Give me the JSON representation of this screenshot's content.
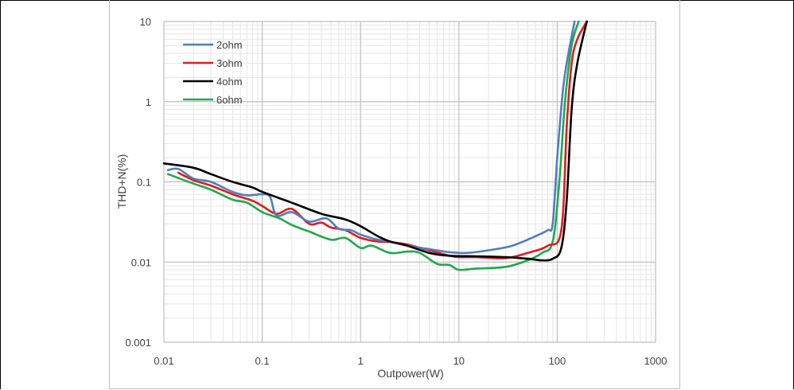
{
  "chart_data": {
    "type": "line",
    "title": "",
    "xlabel": "Outpower(W)",
    "ylabel": "THD+N(%)",
    "xscale": "log",
    "yscale": "log",
    "xlim": [
      0.01,
      1000
    ],
    "ylim": [
      0.001,
      10
    ],
    "x_ticks": [
      "0.01",
      "0.1",
      "1",
      "10",
      "100",
      "1000"
    ],
    "y_ticks": [
      "0.001",
      "0.01",
      "0.1",
      "1",
      "10"
    ],
    "grid": true,
    "legend_position": "top-left",
    "series": [
      {
        "name": "2ohm",
        "color": "#4e7fc0",
        "points": [
          [
            0.011,
            0.14
          ],
          [
            0.014,
            0.145
          ],
          [
            0.02,
            0.11
          ],
          [
            0.03,
            0.1
          ],
          [
            0.05,
            0.075
          ],
          [
            0.07,
            0.068
          ],
          [
            0.1,
            0.07
          ],
          [
            0.12,
            0.065
          ],
          [
            0.14,
            0.038
          ],
          [
            0.2,
            0.042
          ],
          [
            0.3,
            0.032
          ],
          [
            0.45,
            0.035
          ],
          [
            0.6,
            0.026
          ],
          [
            0.8,
            0.025
          ],
          [
            1,
            0.022
          ],
          [
            1.5,
            0.019
          ],
          [
            2,
            0.018
          ],
          [
            3,
            0.016
          ],
          [
            5,
            0.0145
          ],
          [
            8,
            0.0133
          ],
          [
            12,
            0.013
          ],
          [
            20,
            0.014
          ],
          [
            35,
            0.016
          ],
          [
            60,
            0.021
          ],
          [
            80,
            0.025
          ],
          [
            90,
            0.03
          ],
          [
            100,
            0.2
          ],
          [
            115,
            1.5
          ],
          [
            130,
            4
          ],
          [
            150,
            10
          ]
        ]
      },
      {
        "name": "3ohm",
        "color": "#e31a1c",
        "points": [
          [
            0.014,
            0.13
          ],
          [
            0.02,
            0.105
          ],
          [
            0.03,
            0.09
          ],
          [
            0.05,
            0.07
          ],
          [
            0.08,
            0.058
          ],
          [
            0.1,
            0.05
          ],
          [
            0.14,
            0.04
          ],
          [
            0.2,
            0.046
          ],
          [
            0.3,
            0.03
          ],
          [
            0.4,
            0.031
          ],
          [
            0.5,
            0.027
          ],
          [
            0.7,
            0.025
          ],
          [
            1,
            0.02
          ],
          [
            1.5,
            0.018
          ],
          [
            2,
            0.0178
          ],
          [
            3,
            0.0165
          ],
          [
            5,
            0.014
          ],
          [
            8,
            0.012
          ],
          [
            10,
            0.0115
          ],
          [
            15,
            0.0115
          ],
          [
            30,
            0.0112
          ],
          [
            50,
            0.013
          ],
          [
            80,
            0.016
          ],
          [
            110,
            0.025
          ],
          [
            125,
            0.5
          ],
          [
            140,
            3
          ],
          [
            160,
            6
          ],
          [
            200,
            10
          ]
        ]
      },
      {
        "name": "4ohm",
        "color": "#000000",
        "points": [
          [
            0.01,
            0.17
          ],
          [
            0.02,
            0.15
          ],
          [
            0.03,
            0.125
          ],
          [
            0.05,
            0.1
          ],
          [
            0.08,
            0.085
          ],
          [
            0.1,
            0.075
          ],
          [
            0.2,
            0.055
          ],
          [
            0.4,
            0.04
          ],
          [
            0.7,
            0.034
          ],
          [
            1,
            0.028
          ],
          [
            1.5,
            0.021
          ],
          [
            2,
            0.018
          ],
          [
            3,
            0.016
          ],
          [
            5,
            0.013
          ],
          [
            8,
            0.012
          ],
          [
            15,
            0.0118
          ],
          [
            30,
            0.0115
          ],
          [
            50,
            0.011
          ],
          [
            70,
            0.0105
          ],
          [
            90,
            0.011
          ],
          [
            110,
            0.015
          ],
          [
            125,
            0.06
          ],
          [
            140,
            0.8
          ],
          [
            160,
            3
          ],
          [
            200,
            10
          ]
        ]
      },
      {
        "name": "6ohm",
        "color": "#22a84a",
        "points": [
          [
            0.011,
            0.125
          ],
          [
            0.02,
            0.095
          ],
          [
            0.03,
            0.08
          ],
          [
            0.05,
            0.06
          ],
          [
            0.07,
            0.055
          ],
          [
            0.1,
            0.042
          ],
          [
            0.15,
            0.035
          ],
          [
            0.2,
            0.029
          ],
          [
            0.3,
            0.024
          ],
          [
            0.5,
            0.019
          ],
          [
            0.7,
            0.02
          ],
          [
            1,
            0.015
          ],
          [
            1.3,
            0.016
          ],
          [
            2,
            0.013
          ],
          [
            3,
            0.0135
          ],
          [
            4,
            0.013
          ],
          [
            6,
            0.0095
          ],
          [
            8,
            0.0092
          ],
          [
            10,
            0.008
          ],
          [
            15,
            0.0083
          ],
          [
            30,
            0.0087
          ],
          [
            50,
            0.0105
          ],
          [
            70,
            0.013
          ],
          [
            90,
            0.018
          ],
          [
            105,
            0.1
          ],
          [
            120,
            1
          ],
          [
            140,
            5
          ],
          [
            165,
            10
          ]
        ]
      }
    ]
  }
}
